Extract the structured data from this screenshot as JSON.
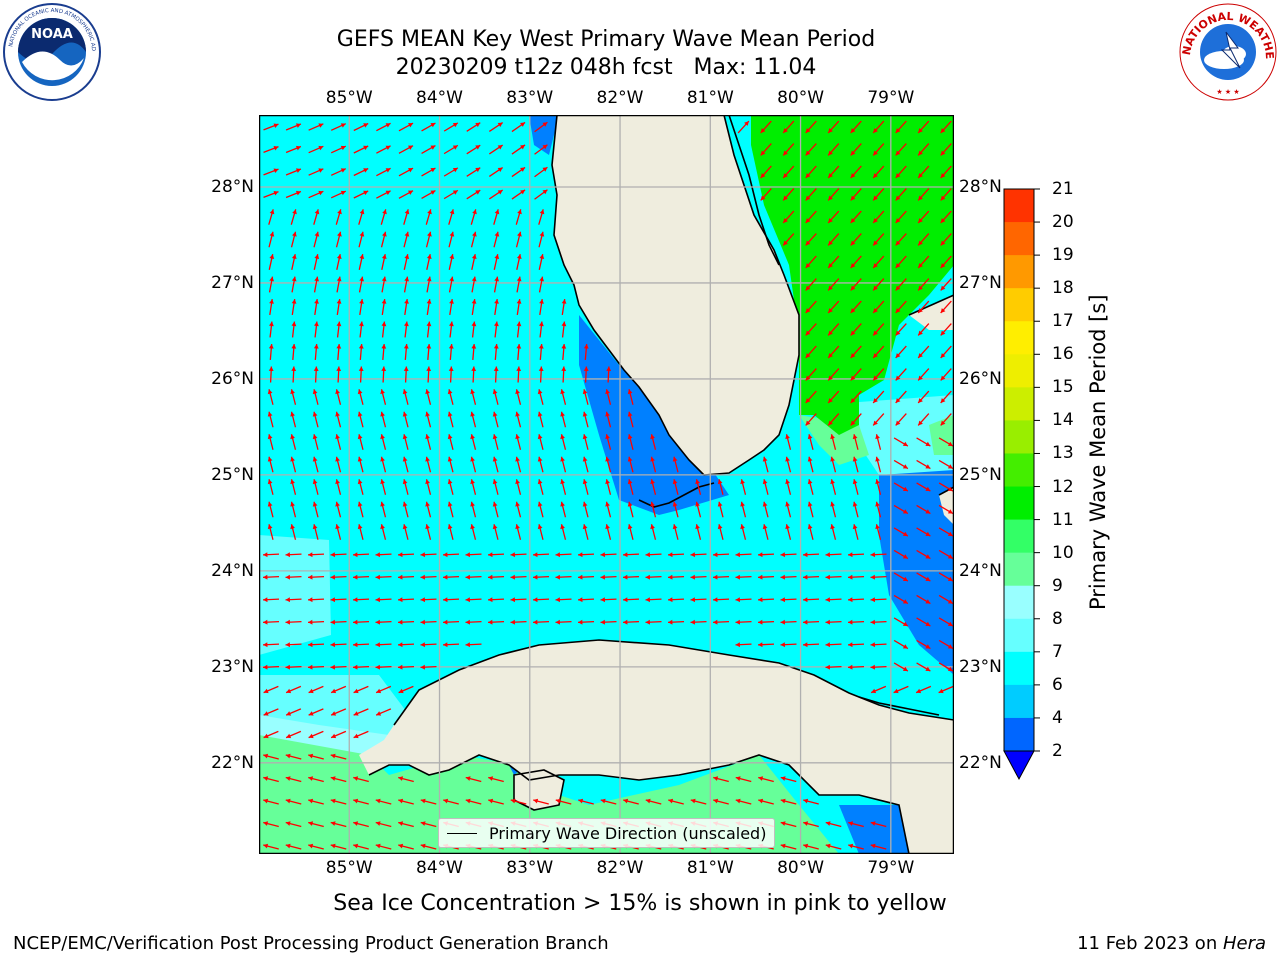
{
  "header": {
    "title_line1": "GEFS MEAN Key West Primary Wave Mean Period",
    "title_line2": "20230209 t12z 048h fcst   Max: 11.04"
  },
  "logos": {
    "left": "noara-logo",
    "right": "nws-logo"
  },
  "map": {
    "lon_ticks": [
      "85°W",
      "84°W",
      "83°W",
      "82°W",
      "81°W",
      "80°W",
      "79°W"
    ],
    "lat_ticks": [
      "28°N",
      "27°N",
      "26°N",
      "25°N",
      "24°N",
      "23°N",
      "22°N"
    ],
    "lon_values": [
      -85,
      -84,
      -83,
      -82,
      -81,
      -80,
      -79
    ],
    "lat_values": [
      28,
      27,
      26,
      25,
      24,
      23,
      22
    ],
    "extent": {
      "lon_min": -86,
      "lon_max": -78.3,
      "lat_min": 21.05,
      "lat_max": 28.75
    },
    "legend_label": "Primary Wave Direction (unscaled)",
    "vector_color": "#ff0000",
    "land_color": "#efedde",
    "grid_color": "#b0b0b0"
  },
  "colorbar": {
    "label": "Primary Wave Mean Period [s]",
    "ticks": [
      "2",
      "4",
      "6",
      "7",
      "8",
      "9",
      "10",
      "11",
      "12",
      "13",
      "14",
      "15",
      "16",
      "17",
      "18",
      "19",
      "20",
      "21"
    ],
    "colors": [
      "#0066ff",
      "#00ccff",
      "#00ffff",
      "#66ffff",
      "#99ffff",
      "#66ff99",
      "#33ff66",
      "#00ee00",
      "#44ee00",
      "#99ee00",
      "#ccee00",
      "#eeee00",
      "#ffee00",
      "#ffcc00",
      "#ff9900",
      "#ff6600",
      "#ff3300"
    ],
    "under_color": "#0000ff"
  },
  "note": "Sea Ice Concentration > 15% is shown in pink to yellow",
  "footer": {
    "left": "NCEP/EMC/Verification Post Processing Product Generation Branch",
    "right_prefix": "11 Feb 2023 on ",
    "right_host": "Hera"
  }
}
